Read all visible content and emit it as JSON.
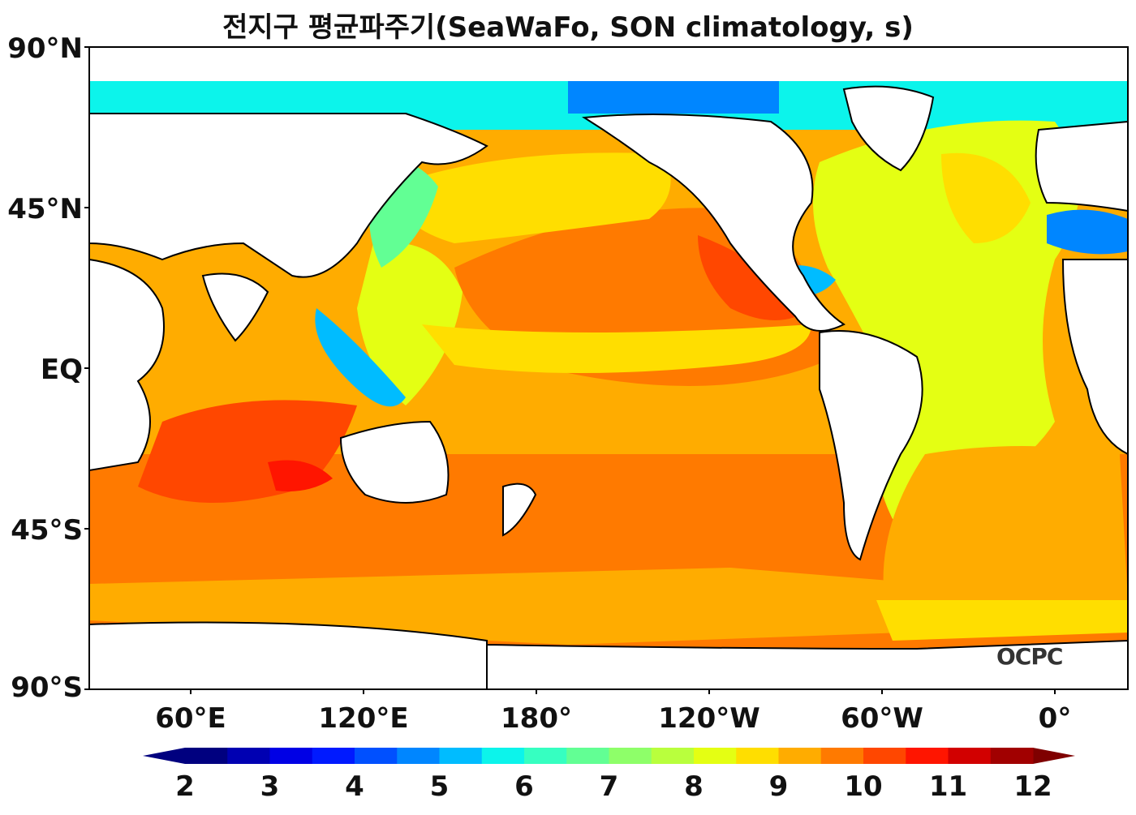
{
  "title": "전지구 평균파주기(SeaWaFo, SON climatology, s)",
  "logo_text": "OCPC",
  "lat_labels": [
    "90°N",
    "45°N",
    "EQ",
    "45°S",
    "90°S"
  ],
  "lon_labels": [
    "60°E",
    "120°E",
    "180°",
    "120°W",
    "60°W",
    "0°"
  ],
  "colorbar": {
    "ticks": [
      "2",
      "3",
      "4",
      "5",
      "6",
      "7",
      "8",
      "9",
      "10",
      "11",
      "12"
    ],
    "colors": [
      "#00007f",
      "#0000b2",
      "#0000e5",
      "#001aff",
      "#0050ff",
      "#0086ff",
      "#00bcff",
      "#0cf4eb",
      "#36ffc1",
      "#62ff94",
      "#8eff69",
      "#b9ff3d",
      "#e4ff13",
      "#ffde00",
      "#ffac00",
      "#ff7a00",
      "#ff4700",
      "#ff1500",
      "#d20000",
      "#a10000"
    ],
    "extend_low": "#00007f",
    "extend_high": "#7f0000"
  },
  "map_colors": {
    "land": "#ffffff",
    "coast": "#000000",
    "ocean_south": "#ff7a00",
    "ocean_orange": "#ffac00",
    "ocean_red": "#ff4700",
    "ocean_yellow": "#ffde00",
    "ocean_lime": "#e4ff13",
    "ocean_green": "#8eff69",
    "ocean_cyan": "#00bcff",
    "ocean_blue": "#0050ff"
  }
}
